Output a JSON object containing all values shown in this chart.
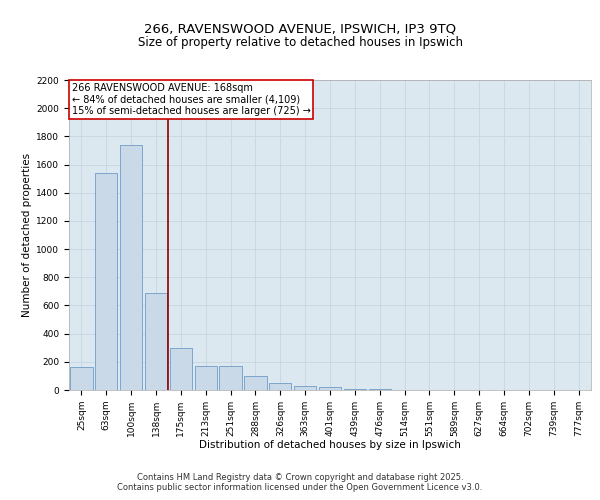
{
  "title_line1": "266, RAVENSWOOD AVENUE, IPSWICH, IP3 9TQ",
  "title_line2": "Size of property relative to detached houses in Ipswich",
  "xlabel": "Distribution of detached houses by size in Ipswich",
  "ylabel": "Number of detached properties",
  "categories": [
    "25sqm",
    "63sqm",
    "100sqm",
    "138sqm",
    "175sqm",
    "213sqm",
    "251sqm",
    "288sqm",
    "326sqm",
    "363sqm",
    "401sqm",
    "439sqm",
    "476sqm",
    "514sqm",
    "551sqm",
    "589sqm",
    "627sqm",
    "664sqm",
    "702sqm",
    "739sqm",
    "777sqm"
  ],
  "values": [
    160,
    1540,
    1740,
    690,
    300,
    170,
    170,
    100,
    50,
    30,
    20,
    10,
    5,
    2,
    1,
    1,
    0,
    0,
    0,
    0,
    0
  ],
  "bar_color": "#c9d9e8",
  "bar_edgecolor": "#5b8dc0",
  "vline_color": "#8b0000",
  "annotation_text": "266 RAVENSWOOD AVENUE: 168sqm\n← 84% of detached houses are smaller (4,109)\n15% of semi-detached houses are larger (725) →",
  "annotation_box_color": "#ffffff",
  "annotation_box_edgecolor": "#cc0000",
  "ylim": [
    0,
    2200
  ],
  "yticks": [
    0,
    200,
    400,
    600,
    800,
    1000,
    1200,
    1400,
    1600,
    1800,
    2000,
    2200
  ],
  "grid_color": "#c8d4e0",
  "background_color": "#dce8f0",
  "footer_line1": "Contains HM Land Registry data © Crown copyright and database right 2025.",
  "footer_line2": "Contains public sector information licensed under the Open Government Licence v3.0.",
  "title_fontsize": 9.5,
  "subtitle_fontsize": 8.5,
  "label_fontsize": 7.5,
  "tick_fontsize": 6.5,
  "footer_fontsize": 6.0,
  "annotation_fontsize": 7.0
}
